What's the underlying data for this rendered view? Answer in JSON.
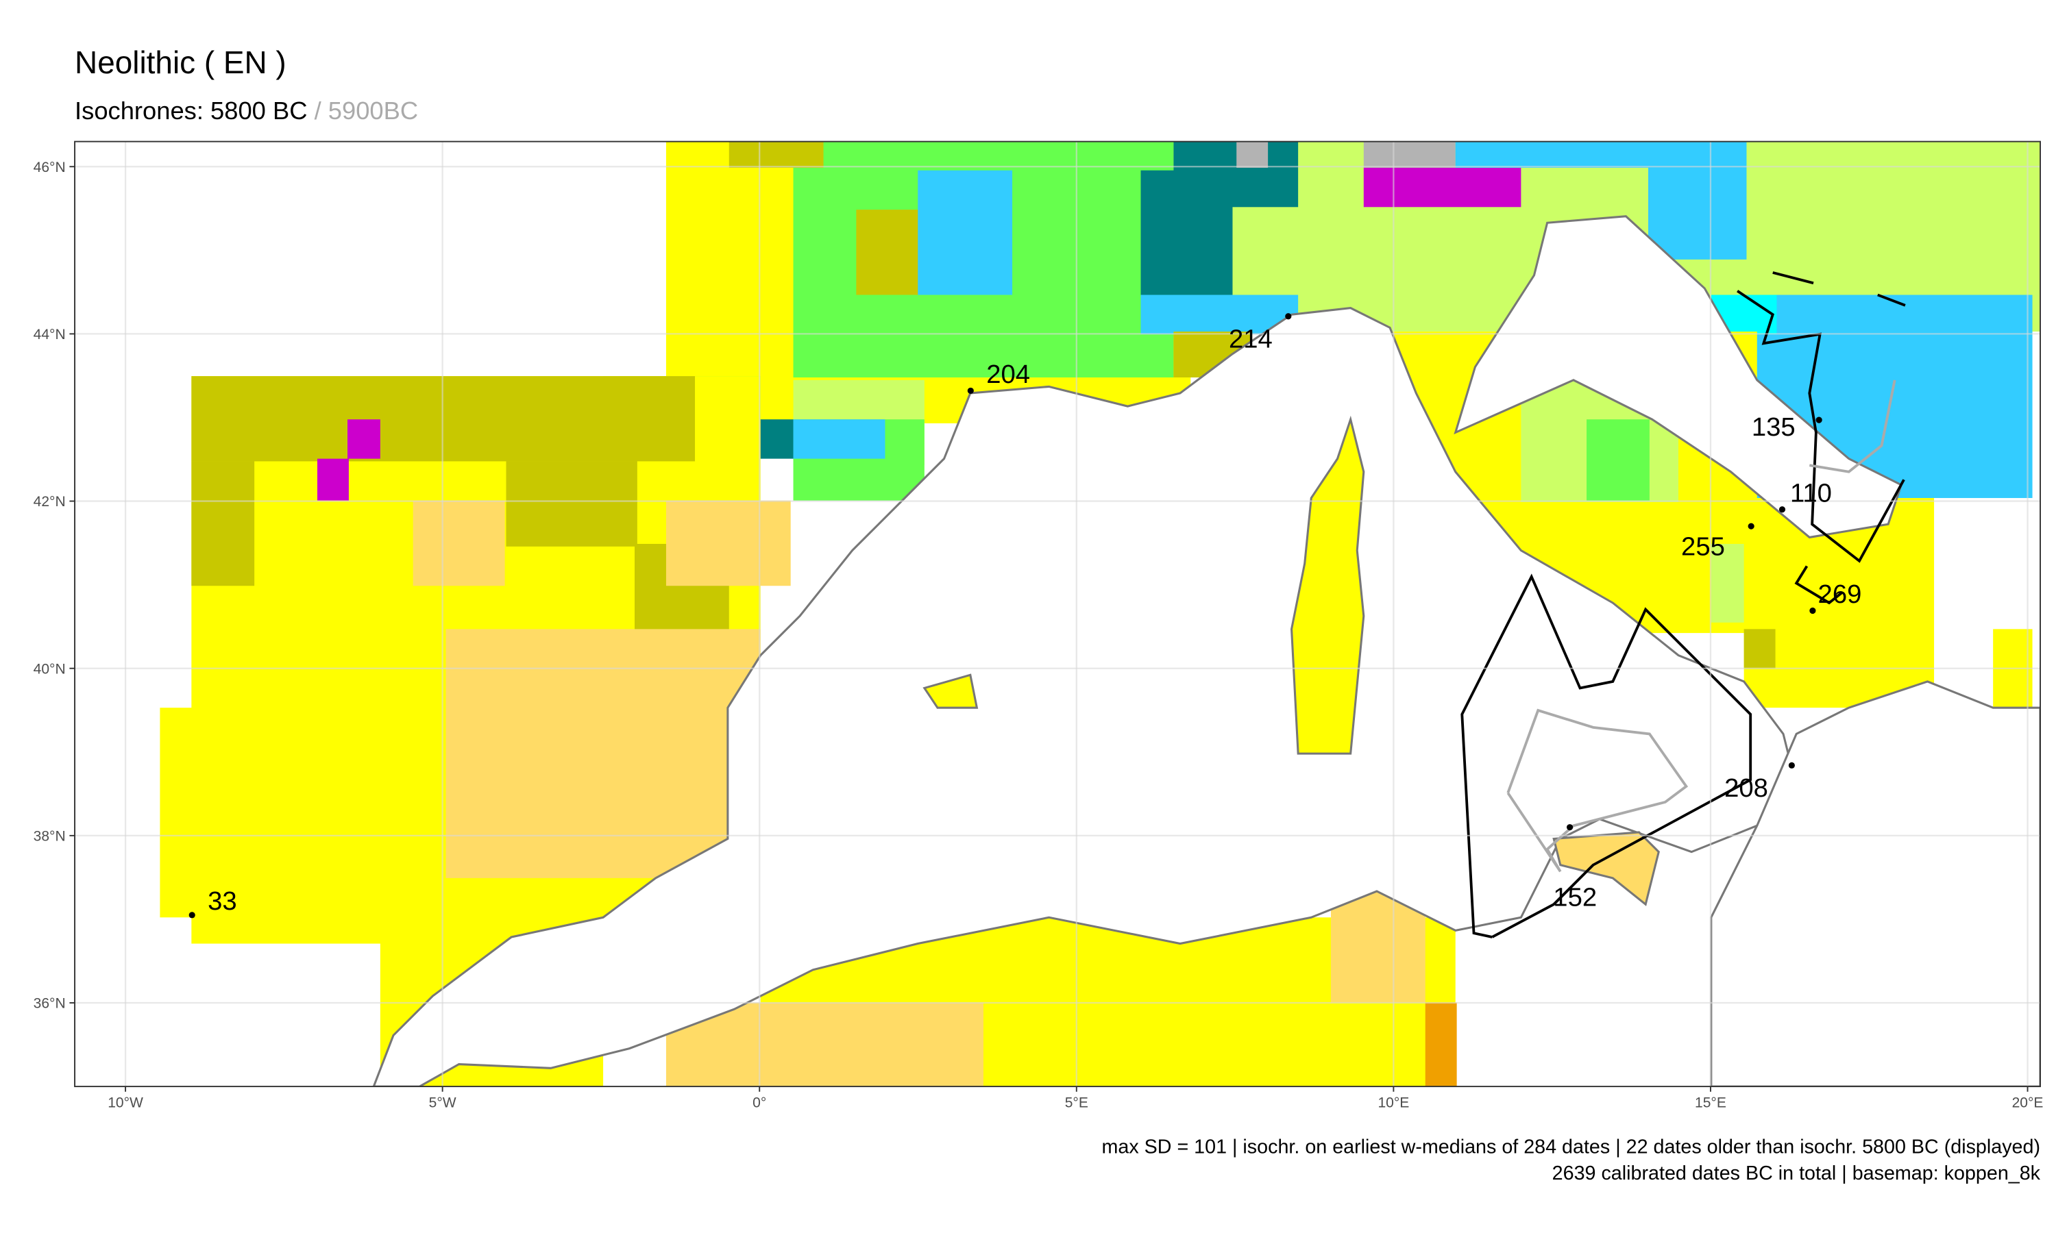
{
  "chart_data": {
    "type": "map",
    "title": "Neolithic ( EN )",
    "subtitle": "Isochrones: 5800 BC",
    "subtitle_secondary": "/ 5900BC",
    "xlim": [
      -10.8,
      20.2
    ],
    "ylim": [
      35.0,
      46.3
    ],
    "xticks": [
      {
        "value": -10,
        "label": "10°W"
      },
      {
        "value": -5,
        "label": "5°W"
      },
      {
        "value": 0,
        "label": "0°"
      },
      {
        "value": 5,
        "label": "5°E"
      },
      {
        "value": 10,
        "label": "10°E"
      },
      {
        "value": 15,
        "label": "15°E"
      },
      {
        "value": 20,
        "label": "20°E"
      }
    ],
    "yticks": [
      {
        "value": 46,
        "label": "46°N"
      },
      {
        "value": 44,
        "label": "44°N"
      },
      {
        "value": 42,
        "label": "42°N"
      },
      {
        "value": 40,
        "label": "40°N"
      },
      {
        "value": 38,
        "label": "38°N"
      },
      {
        "value": 36,
        "label": "36°N"
      }
    ],
    "grid": true,
    "sites": [
      {
        "x": -8.95,
        "y": 37.05,
        "label": 33
      },
      {
        "x": 3.33,
        "y": 43.32,
        "label": 204
      },
      {
        "x": 8.34,
        "y": 44.21,
        "label": 214
      },
      {
        "x": 16.71,
        "y": 42.97,
        "label": 135
      },
      {
        "x": 16.13,
        "y": 41.9,
        "label": 110
      },
      {
        "x": 15.64,
        "y": 41.7,
        "label": 255
      },
      {
        "x": 16.61,
        "y": 40.69,
        "label": 269
      },
      {
        "x": 16.28,
        "y": 38.84,
        "label": 208
      },
      {
        "x": 12.78,
        "y": 38.1,
        "label": 152
      }
    ],
    "footer": [
      "max SD = 101 | isochr. on earliest w-medians of 284 dates |  22 dates older than isochr. 5800 BC (displayed)",
      "2639 calibrated dates BC in total | basemap: koppen_8k"
    ]
  }
}
